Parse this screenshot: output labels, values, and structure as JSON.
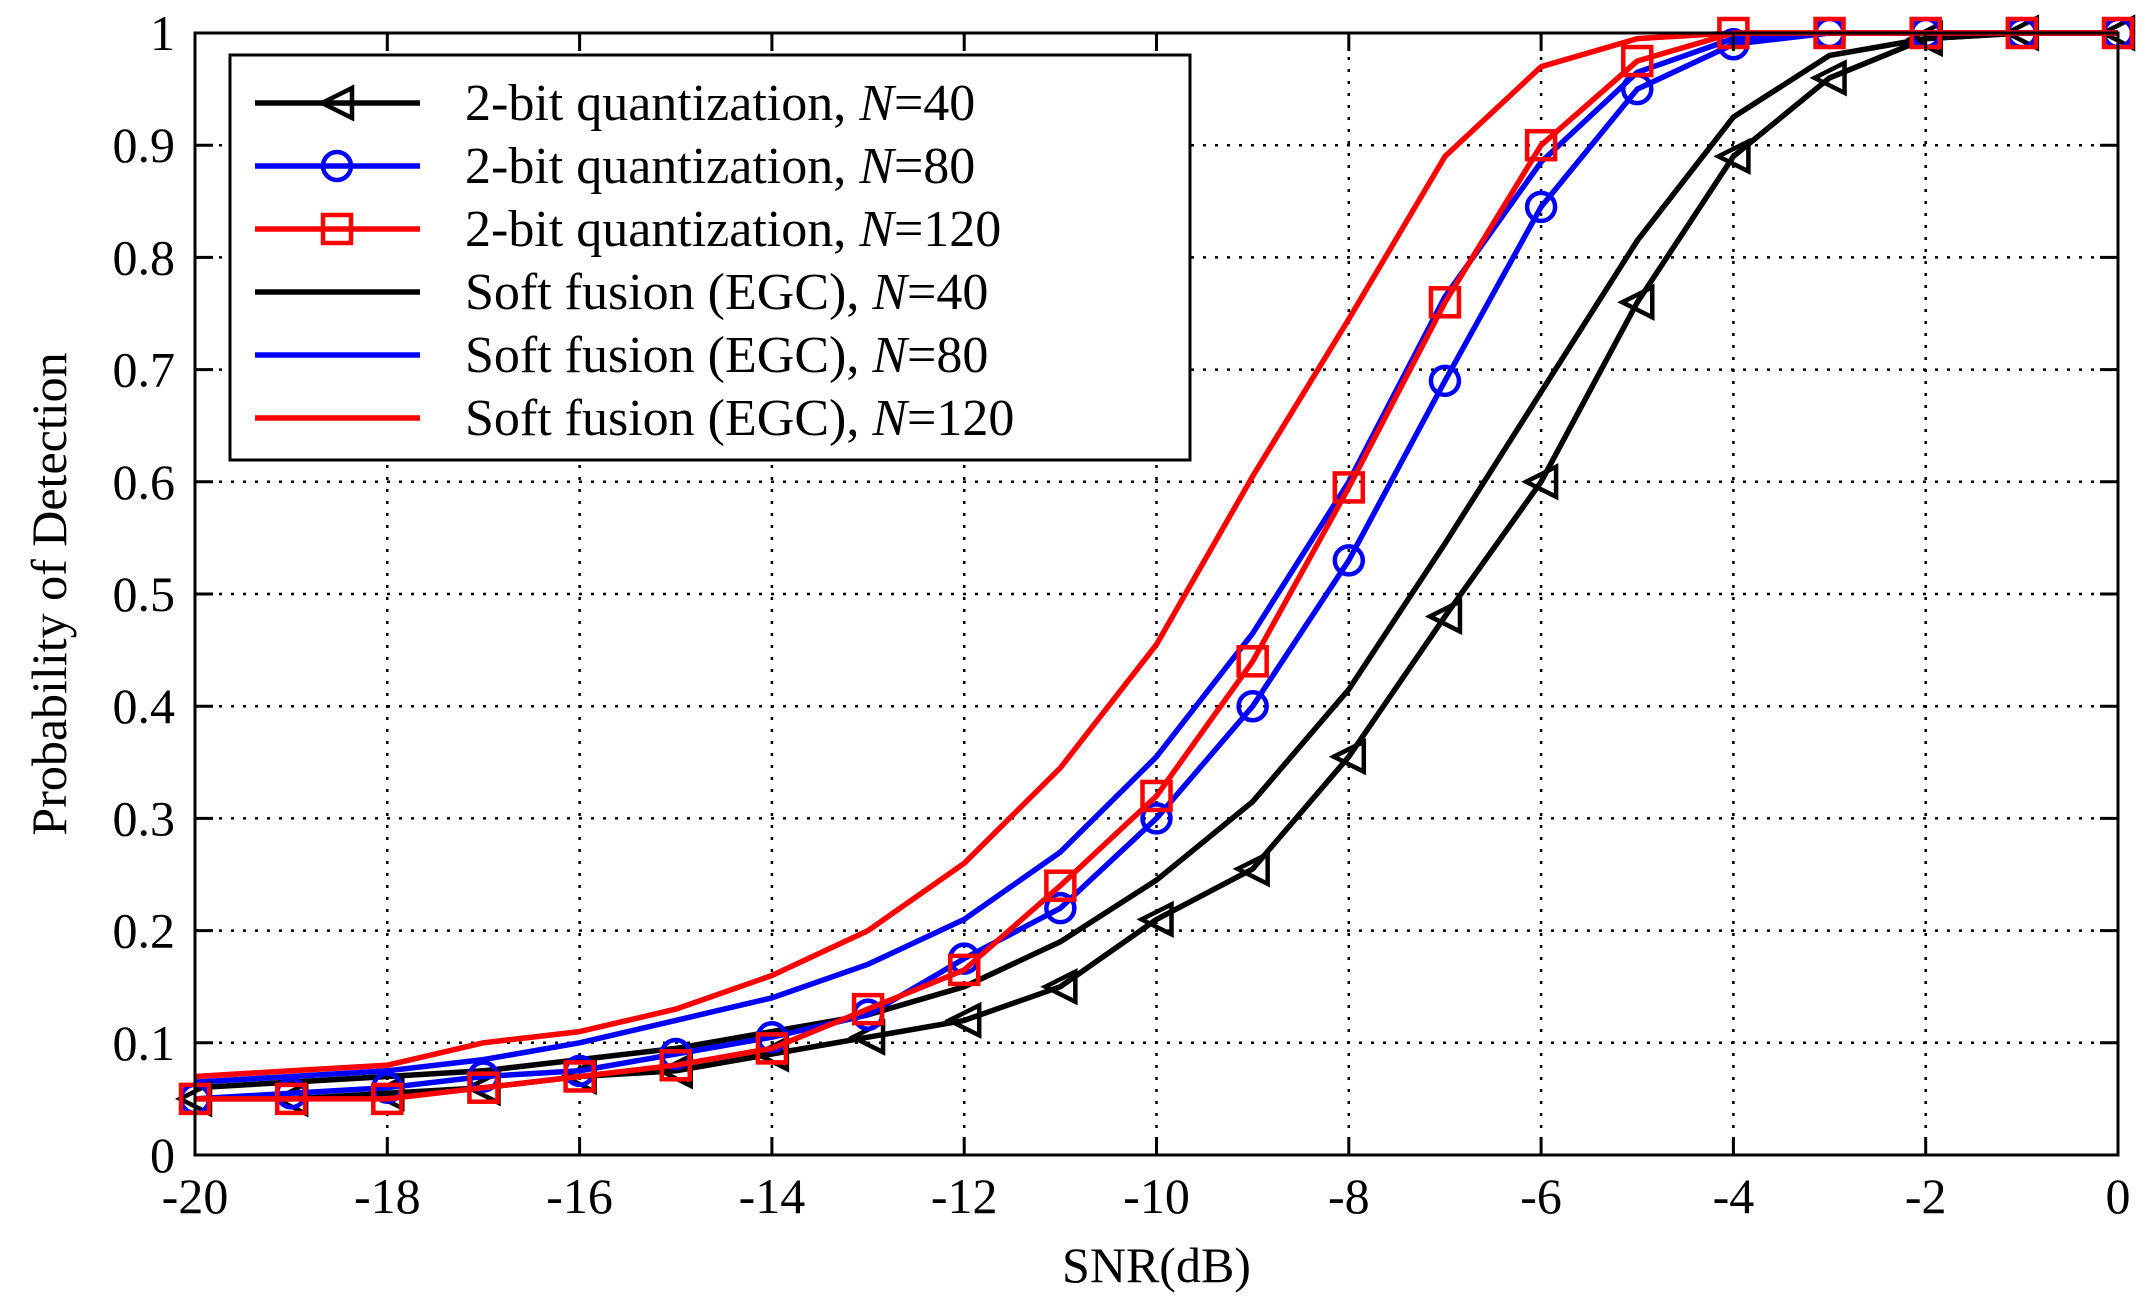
{
  "chart_data": {
    "type": "line",
    "title": "",
    "xlabel": "SNR(dB)",
    "ylabel": "Probability of Detection",
    "xlim": [
      -20,
      0
    ],
    "ylim": [
      0,
      1
    ],
    "xticks": [
      -20,
      -18,
      -16,
      -14,
      -12,
      -10,
      -8,
      -6,
      -4,
      -2,
      0
    ],
    "yticks": [
      0,
      0.1,
      0.2,
      0.3,
      0.4,
      0.5,
      0.6,
      0.7,
      0.8,
      0.9,
      1
    ],
    "xtick_labels": [
      "-20",
      "-18",
      "-16",
      "-14",
      "-12",
      "-10",
      "-8",
      "-6",
      "-4",
      "-2",
      "0"
    ],
    "ytick_labels": [
      "0",
      "0.1",
      "0.2",
      "0.3",
      "0.4",
      "0.5",
      "0.6",
      "0.7",
      "0.8",
      "0.9",
      "1"
    ],
    "grid": true,
    "legend_position": "top-left",
    "x": [
      -20,
      -19,
      -18,
      -17,
      -16,
      -15,
      -14,
      -13,
      -12,
      -11,
      -10,
      -9,
      -8,
      -7,
      -6,
      -5,
      -4,
      -3,
      -2,
      -1,
      0
    ],
    "series": [
      {
        "name": "2-bit quantization, N=40",
        "legend_prefix": "2-bit quantization, ",
        "legend_var": "N",
        "legend_suffix": "=40",
        "color": "#000000",
        "marker": "triangle-left",
        "values": [
          0.05,
          0.05,
          0.055,
          0.06,
          0.07,
          0.075,
          0.09,
          0.105,
          0.12,
          0.15,
          0.21,
          0.255,
          0.355,
          0.48,
          0.6,
          0.76,
          0.89,
          0.96,
          0.995,
          1.0,
          1.0
        ]
      },
      {
        "name": "2-bit quantization, N=80",
        "legend_prefix": "2-bit quantization, ",
        "legend_var": "N",
        "legend_suffix": "=80",
        "color": "#0000ff",
        "marker": "circle",
        "values": [
          0.05,
          0.055,
          0.06,
          0.07,
          0.075,
          0.09,
          0.105,
          0.125,
          0.175,
          0.22,
          0.3,
          0.4,
          0.53,
          0.69,
          0.845,
          0.95,
          0.99,
          1.0,
          1.0,
          1.0,
          1.0
        ]
      },
      {
        "name": "2-bit quantization, N=120",
        "legend_prefix": "2-bit quantization, ",
        "legend_var": "N",
        "legend_suffix": "=120",
        "color": "#ff0000",
        "marker": "square",
        "values": [
          0.05,
          0.05,
          0.05,
          0.06,
          0.07,
          0.08,
          0.095,
          0.13,
          0.165,
          0.24,
          0.32,
          0.44,
          0.595,
          0.76,
          0.9,
          0.975,
          1.0,
          1.0,
          1.0,
          1.0,
          1.0
        ]
      },
      {
        "name": "Soft fusion (EGC), N=40",
        "legend_prefix": "Soft fusion (EGC), ",
        "legend_var": "N",
        "legend_suffix": "=40",
        "color": "#000000",
        "marker": "none",
        "values": [
          0.06,
          0.065,
          0.07,
          0.075,
          0.085,
          0.095,
          0.11,
          0.125,
          0.15,
          0.19,
          0.245,
          0.315,
          0.415,
          0.545,
          0.68,
          0.815,
          0.925,
          0.98,
          0.995,
          1.0,
          1.0
        ]
      },
      {
        "name": "Soft fusion (EGC), N=80",
        "legend_prefix": "Soft fusion (EGC), ",
        "legend_var": "N",
        "legend_suffix": "=80",
        "color": "#0000ff",
        "marker": "none",
        "values": [
          0.065,
          0.07,
          0.075,
          0.085,
          0.1,
          0.12,
          0.14,
          0.17,
          0.21,
          0.27,
          0.355,
          0.465,
          0.6,
          0.765,
          0.885,
          0.965,
          0.995,
          1.0,
          1.0,
          1.0,
          1.0
        ]
      },
      {
        "name": "Soft fusion (EGC), N=120",
        "legend_prefix": "Soft fusion (EGC), ",
        "legend_var": "N",
        "legend_suffix": "=120",
        "color": "#ff0000",
        "marker": "none",
        "values": [
          0.07,
          0.075,
          0.08,
          0.1,
          0.11,
          0.13,
          0.16,
          0.2,
          0.26,
          0.345,
          0.455,
          0.605,
          0.745,
          0.89,
          0.97,
          0.995,
          1.0,
          1.0,
          1.0,
          1.0,
          1.0
        ]
      }
    ]
  }
}
